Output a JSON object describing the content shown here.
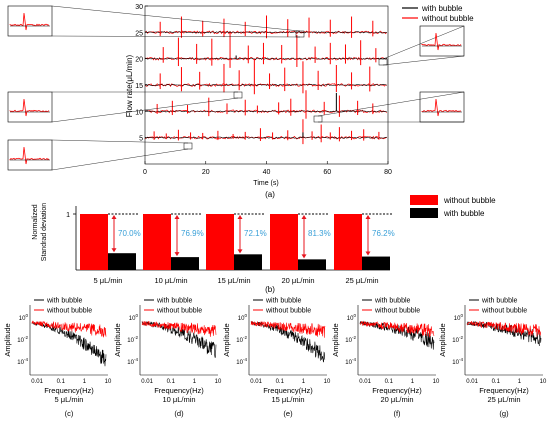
{
  "panel_a": {
    "ylabel": "Flow rate(μL/min)",
    "xlabel": "Time (s)",
    "caption": "(a)",
    "legend": [
      "with bubble",
      "without bubble"
    ]
  },
  "panel_b": {
    "ylabel_line1": "Normalized",
    "ylabel_line2": "Standrad deviation",
    "tick_top": "1",
    "caption": "(b)",
    "legend": [
      "without bubble",
      "with bubble"
    ]
  },
  "psd_panels": {
    "ylabel": "Amplitude",
    "xlabel": "Frequency(Hz)",
    "legend": [
      "with bubble",
      "without bubble"
    ],
    "xticks": [
      "0.01",
      "0.1",
      "1",
      "10"
    ],
    "yticks": [
      "10^0",
      "10^-2",
      "10^-4"
    ],
    "items": [
      {
        "flow": "5 μL/min",
        "caption": "(c)"
      },
      {
        "flow": "10 μL/min",
        "caption": "(d)"
      },
      {
        "flow": "15 μL/min",
        "caption": "(e)"
      },
      {
        "flow": "20 μL/min",
        "caption": "(f)"
      },
      {
        "flow": "25 μL/min",
        "caption": "(g)"
      }
    ]
  },
  "colors": {
    "without_bubble": "#ff0000",
    "with_bubble": "#000000",
    "reduction_label": "#3aa0d8",
    "arrow": "#e8141e"
  },
  "chart_data": [
    {
      "type": "line",
      "panel": "(a)",
      "xlabel": "Time (s)",
      "ylabel": "Flow rate(μL/min)",
      "xlim": [
        0,
        80
      ],
      "ylim": [
        0,
        30
      ],
      "xticks": [
        0,
        20,
        40,
        60,
        80
      ],
      "yticks": [
        5,
        10,
        15,
        20,
        25,
        30
      ],
      "baselines": [
        5,
        10,
        15,
        20,
        25
      ],
      "series": [
        {
          "name": "with bubble"
        },
        {
          "name": "without bubble"
        }
      ],
      "spikes_without_bubble": [
        {
          "t": 3,
          "h": 1.2,
          "b": 5
        },
        {
          "t": 7,
          "h": 0.8,
          "b": 5
        },
        {
          "t": 11,
          "h": 1.5,
          "b": 5
        },
        {
          "t": 15,
          "h": 1.0,
          "b": 5
        },
        {
          "t": 19,
          "h": 0.9,
          "b": 5
        },
        {
          "t": 24,
          "h": 1.3,
          "b": 5
        },
        {
          "t": 29,
          "h": 0.7,
          "b": 5
        },
        {
          "t": 33,
          "h": 1.1,
          "b": 5
        },
        {
          "t": 38,
          "h": 1.8,
          "b": 5
        },
        {
          "t": 42,
          "h": 1.0,
          "b": 5
        },
        {
          "t": 47,
          "h": 1.4,
          "b": 5
        },
        {
          "t": 52,
          "h": 3.5,
          "b": 5
        },
        {
          "t": 55,
          "h": 1.2,
          "b": 5
        },
        {
          "t": 58,
          "h": 2.5,
          "b": 5
        },
        {
          "t": 61,
          "h": 1.0,
          "b": 5
        },
        {
          "t": 64,
          "h": 2.0,
          "b": 5
        },
        {
          "t": 68,
          "h": 1.3,
          "b": 5
        },
        {
          "t": 72,
          "h": 1.6,
          "b": 5
        },
        {
          "t": 77,
          "h": 1.1,
          "b": 5
        },
        {
          "t": 4,
          "h": 1.4,
          "b": 10
        },
        {
          "t": 9,
          "h": 2.0,
          "b": 10
        },
        {
          "t": 14,
          "h": 1.2,
          "b": 10
        },
        {
          "t": 21,
          "h": 2.6,
          "b": 10
        },
        {
          "t": 27,
          "h": 1.5,
          "b": 10
        },
        {
          "t": 33,
          "h": 2.2,
          "b": 10
        },
        {
          "t": 37,
          "h": 1.1,
          "b": 10
        },
        {
          "t": 44,
          "h": 1.7,
          "b": 10
        },
        {
          "t": 48,
          "h": 2.4,
          "b": 10
        },
        {
          "t": 53,
          "h": 4.0,
          "b": 10
        },
        {
          "t": 59,
          "h": 1.8,
          "b": 10
        },
        {
          "t": 64,
          "h": 3.0,
          "b": 10
        },
        {
          "t": 70,
          "h": 2.0,
          "b": 10
        },
        {
          "t": 75,
          "h": 1.5,
          "b": 10
        },
        {
          "t": 5,
          "h": 2.2,
          "b": 15
        },
        {
          "t": 12,
          "h": 3.4,
          "b": 15
        },
        {
          "t": 18,
          "h": 2.5,
          "b": 15
        },
        {
          "t": 26,
          "h": 4.0,
          "b": 15
        },
        {
          "t": 31,
          "h": 2.8,
          "b": 15
        },
        {
          "t": 36,
          "h": 5.0,
          "b": 15
        },
        {
          "t": 41,
          "h": 2.2,
          "b": 15
        },
        {
          "t": 46,
          "h": 3.3,
          "b": 15
        },
        {
          "t": 52,
          "h": 4.5,
          "b": 15
        },
        {
          "t": 57,
          "h": 2.7,
          "b": 15
        },
        {
          "t": 63,
          "h": 3.8,
          "b": 15
        },
        {
          "t": 68,
          "h": 2.4,
          "b": 15
        },
        {
          "t": 74,
          "h": 3.5,
          "b": 15
        },
        {
          "t": 6,
          "h": 2.2,
          "b": 20
        },
        {
          "t": 11,
          "h": 4.0,
          "b": 20
        },
        {
          "t": 17,
          "h": 2.8,
          "b": 20
        },
        {
          "t": 22,
          "h": 3.8,
          "b": 20
        },
        {
          "t": 28,
          "h": 5.0,
          "b": 20
        },
        {
          "t": 34,
          "h": 2.5,
          "b": 20
        },
        {
          "t": 39,
          "h": 3.0,
          "b": 20
        },
        {
          "t": 45,
          "h": 2.6,
          "b": 20
        },
        {
          "t": 50,
          "h": 4.5,
          "b": 20
        },
        {
          "t": 56,
          "h": 2.3,
          "b": 20
        },
        {
          "t": 61,
          "h": 3.0,
          "b": 20
        },
        {
          "t": 66,
          "h": 2.7,
          "b": 20
        },
        {
          "t": 71,
          "h": 3.5,
          "b": 20
        },
        {
          "t": 76,
          "h": 2.0,
          "b": 20
        },
        {
          "t": 5,
          "h": 2.0,
          "b": 25
        },
        {
          "t": 12,
          "h": 3.0,
          "b": 25
        },
        {
          "t": 19,
          "h": 2.2,
          "b": 25
        },
        {
          "t": 26,
          "h": 2.6,
          "b": 25
        },
        {
          "t": 33,
          "h": 2.0,
          "b": 25
        },
        {
          "t": 40,
          "h": 3.2,
          "b": 25
        },
        {
          "t": 47,
          "h": 2.5,
          "b": 25
        },
        {
          "t": 54,
          "h": 2.8,
          "b": 25
        },
        {
          "t": 61,
          "h": 2.4,
          "b": 25
        },
        {
          "t": 68,
          "h": 3.0,
          "b": 25
        },
        {
          "t": 75,
          "h": 2.2,
          "b": 25
        }
      ],
      "spikes_with_bubble": [
        {
          "t": 63,
          "h": 3.5,
          "b": 10
        },
        {
          "t": 52,
          "h": 1.0,
          "b": 5
        },
        {
          "t": 30,
          "h": 0.6,
          "b": 20
        }
      ]
    },
    {
      "type": "bar",
      "panel": "(b)",
      "ylabel": "Normalized Standrad deviation",
      "ylim": [
        0,
        1
      ],
      "categories": [
        "5 μL/min",
        "10 μL/min",
        "15 μL/min",
        "20 μL/min",
        "25 μL/min"
      ],
      "series": [
        {
          "name": "without bubble",
          "values": [
            1.0,
            1.0,
            1.0,
            1.0,
            1.0
          ]
        },
        {
          "name": "with bubble",
          "values": [
            0.3,
            0.23,
            0.28,
            0.19,
            0.24
          ]
        }
      ],
      "annotations": [
        "70.0%",
        "76.9%",
        "72.1%",
        "81.3%",
        "76.2%"
      ]
    },
    {
      "type": "line",
      "panels": [
        "(c)",
        "(d)",
        "(e)",
        "(f)",
        "(g)"
      ],
      "xscale": "log",
      "yscale": "log",
      "xlabel": "Frequency(Hz)",
      "ylabel": "Amplitude",
      "xlim": [
        0.005,
        10
      ],
      "series": [
        {
          "name": "with bubble"
        },
        {
          "name": "without bubble"
        }
      ]
    }
  ]
}
